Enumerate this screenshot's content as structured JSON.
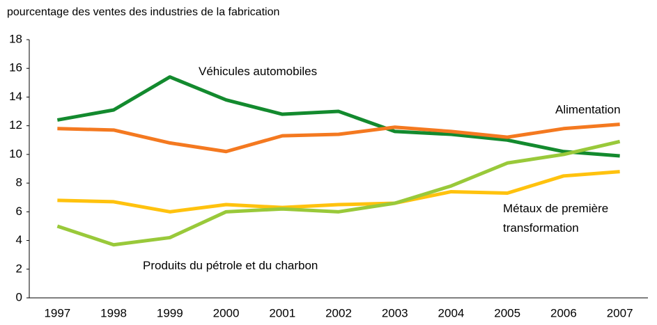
{
  "chart_data": {
    "type": "line",
    "y_axis_label": "pourcentage des ventes des industries de la fabrication",
    "categories": [
      "1997",
      "1998",
      "1999",
      "2000",
      "2001",
      "2002",
      "2003",
      "2004",
      "2005",
      "2006",
      "2007"
    ],
    "series": [
      {
        "name": "Véhicules automobiles",
        "color": "#138a2e",
        "values": [
          12.4,
          13.1,
          15.4,
          13.8,
          12.8,
          13.0,
          11.6,
          11.4,
          11.0,
          10.2,
          9.9
        ]
      },
      {
        "name": "Alimentation",
        "color": "#f47920",
        "values": [
          11.8,
          11.7,
          10.8,
          10.2,
          11.3,
          11.4,
          11.9,
          11.6,
          11.2,
          11.8,
          12.1
        ]
      },
      {
        "name": "Métaux de première transformation",
        "color": "#ffc20e",
        "values": [
          6.8,
          6.7,
          6.0,
          6.5,
          6.3,
          6.5,
          6.6,
          7.4,
          7.3,
          8.5,
          8.8
        ]
      },
      {
        "name": "Produits du pétrole et du charbon",
        "color": "#99c93a",
        "values": [
          5.0,
          3.7,
          4.2,
          6.0,
          6.2,
          6.0,
          6.6,
          7.8,
          9.4,
          10.0,
          10.9
        ]
      }
    ],
    "ylim": [
      0,
      18
    ],
    "yticks": [
      0,
      2,
      4,
      6,
      8,
      10,
      12,
      14,
      16,
      18
    ],
    "grid": false,
    "legend": false
  }
}
